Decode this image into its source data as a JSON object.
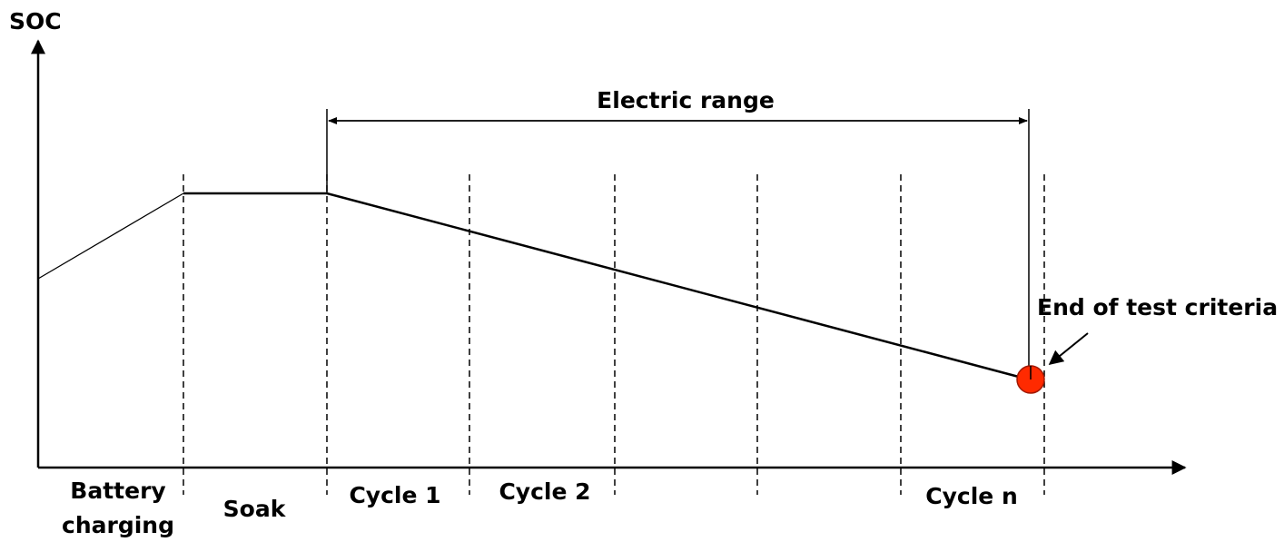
{
  "axis": {
    "y_label": "SOC"
  },
  "annotations": {
    "range": "Electric range",
    "end": "End of test criteria"
  },
  "phases": [
    {
      "lines": [
        "Battery",
        "charging"
      ]
    },
    {
      "lines": [
        "Soak"
      ]
    },
    {
      "lines": [
        "Cycle 1"
      ]
    },
    {
      "lines": [
        "Cycle 2"
      ]
    },
    {
      "lines": [
        "Cycle n"
      ]
    }
  ]
}
